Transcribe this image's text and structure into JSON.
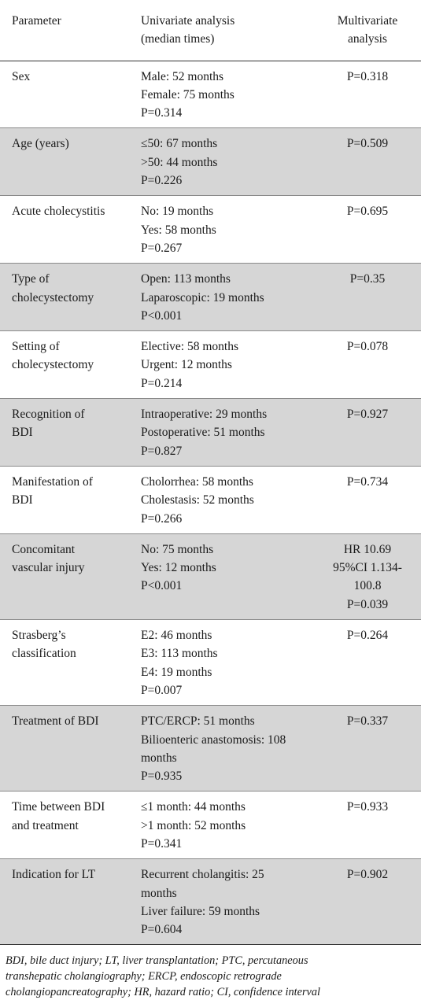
{
  "header": {
    "parameter": "Parameter",
    "univariate": [
      "Univariate analysis",
      "(median times)"
    ],
    "multivariate": [
      "Multivariate",
      "analysis"
    ]
  },
  "rows": [
    {
      "parameter": [
        "Sex"
      ],
      "univariate": [
        "Male: 52 months",
        "Female: 75 months",
        "P=0.314"
      ],
      "multivariate": [
        "P=0.318"
      ]
    },
    {
      "parameter": [
        "Age (years)"
      ],
      "univariate": [
        "≤50: 67 months",
        ">50: 44 months",
        "P=0.226"
      ],
      "multivariate": [
        "P=0.509"
      ]
    },
    {
      "parameter": [
        "Acute cholecystitis"
      ],
      "univariate": [
        "No: 19 months",
        "Yes: 58 months",
        "P=0.267"
      ],
      "multivariate": [
        "P=0.695"
      ]
    },
    {
      "parameter": [
        "Type of",
        "cholecystectomy"
      ],
      "univariate": [
        "Open: 113 months",
        "Laparoscopic: 19 months",
        "P<0.001"
      ],
      "multivariate": [
        "P=0.35"
      ]
    },
    {
      "parameter": [
        "Setting of",
        "cholecystectomy"
      ],
      "univariate": [
        "Elective: 58 months",
        "Urgent: 12 months",
        "P=0.214"
      ],
      "multivariate": [
        "P=0.078"
      ]
    },
    {
      "parameter": [
        "Recognition of",
        "BDI"
      ],
      "univariate": [
        "Intraoperative: 29 months",
        "Postoperative: 51 months",
        "P=0.827"
      ],
      "multivariate": [
        "P=0.927"
      ]
    },
    {
      "parameter": [
        "Manifestation of",
        "BDI"
      ],
      "univariate": [
        "Cholorrhea: 58 months",
        "Cholestasis: 52 months",
        "P=0.266"
      ],
      "multivariate": [
        "P=0.734"
      ]
    },
    {
      "parameter": [
        "Concomitant",
        "vascular injury"
      ],
      "univariate": [
        "No: 75 months",
        "Yes: 12 months",
        "P<0.001"
      ],
      "multivariate": [
        "HR 10.69",
        "95%CI 1.134-",
        "100.8",
        "P=0.039"
      ]
    },
    {
      "parameter": [
        "Strasberg’s",
        "classification"
      ],
      "univariate": [
        "E2: 46 months",
        "E3: 113 months",
        "E4: 19 months",
        "P=0.007"
      ],
      "multivariate": [
        "P=0.264"
      ]
    },
    {
      "parameter": [
        "Treatment of BDI"
      ],
      "univariate": [
        "PTC/ERCP: 51 months",
        "Bilioenteric anastomosis: 108",
        "months",
        "P=0.935"
      ],
      "multivariate": [
        "P=0.337"
      ]
    },
    {
      "parameter": [
        "Time between BDI",
        "and treatment"
      ],
      "univariate": [
        "≤1 month: 44 months",
        ">1 month: 52 months",
        "P=0.341"
      ],
      "multivariate": [
        "P=0.933"
      ]
    },
    {
      "parameter": [
        "Indication for LT"
      ],
      "univariate": [
        "Recurrent cholangitis: 25",
        "months",
        "Liver failure: 59 months",
        "P=0.604"
      ],
      "multivariate": [
        "P=0.902"
      ]
    }
  ],
  "footnote": [
    "BDI, bile duct injury; LT, liver transplantation; PTC, percutaneous",
    "transhepatic cholangiography; ERCP, endoscopic retrograde",
    "cholangiopancreatography; HR, hazard ratio; CI, confidence interval"
  ]
}
